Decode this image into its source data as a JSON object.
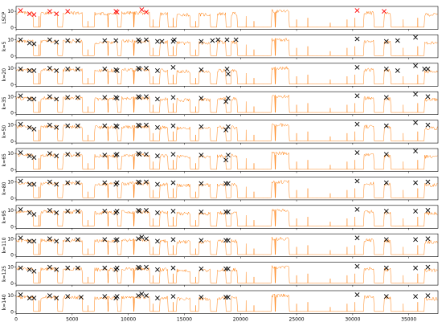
{
  "chart_data": {
    "type": "line",
    "title": "",
    "xlabel": "",
    "ylabel": "",
    "xlim": [
      0,
      37600
    ],
    "ylim": [
      -1,
      13
    ],
    "x_ticks": [
      0,
      5000,
      10000,
      15000,
      20000,
      25000,
      30000,
      35000
    ],
    "y_ticks": [
      0,
      10
    ],
    "grid": false,
    "legend": "none",
    "line_color": "#ff7f0e",
    "marker_color": "#000000",
    "highlight_marker_color": "#ff0000",
    "signal_segments": [
      {
        "start": 0,
        "end": 1500,
        "level": 9
      },
      {
        "start": 2200,
        "end": 3700,
        "level": 9
      },
      {
        "start": 4200,
        "end": 5900,
        "level": 9
      },
      {
        "start": 7000,
        "end": 9000,
        "level": 8.5
      },
      {
        "start": 9400,
        "end": 11900,
        "level": 9
      },
      {
        "start": 12800,
        "end": 13500,
        "level": 8.5
      },
      {
        "start": 14300,
        "end": 15500,
        "level": 8
      },
      {
        "start": 16300,
        "end": 17300,
        "level": 8
      },
      {
        "start": 17900,
        "end": 18700,
        "level": 8.5
      },
      {
        "start": 19200,
        "end": 19700,
        "level": 8.5
      },
      {
        "start": 22800,
        "end": 24300,
        "level": 10
      },
      {
        "start": 31000,
        "end": 31900,
        "level": 9
      },
      {
        "start": 32800,
        "end": 33400,
        "level": 8.5
      },
      {
        "start": 36400,
        "end": 37600,
        "level": 8
      }
    ],
    "spikes": [
      {
        "x": 2050,
        "level": 7
      },
      {
        "x": 6400,
        "level": 4
      },
      {
        "x": 8200,
        "level": 6
      },
      {
        "x": 10500,
        "level": 5
      },
      {
        "x": 12200,
        "level": 5
      },
      {
        "x": 14000,
        "level": 6
      },
      {
        "x": 16000,
        "level": 4
      },
      {
        "x": 20500,
        "level": 7
      },
      {
        "x": 21200,
        "level": 4
      },
      {
        "x": 23100,
        "level": 6
      },
      {
        "x": 25000,
        "level": 5
      },
      {
        "x": 26000,
        "level": 6
      },
      {
        "x": 28000,
        "level": 3
      },
      {
        "x": 29500,
        "level": 5
      },
      {
        "x": 30200,
        "level": 6
      },
      {
        "x": 34500,
        "level": 5
      },
      {
        "x": 35800,
        "level": 6
      }
    ],
    "series": [
      {
        "name": "LSCP",
        "marker_color": "#ff0000",
        "markers": [
          [
            400,
            10.5
          ],
          [
            1200,
            8.5
          ],
          [
            1600,
            8
          ],
          [
            3000,
            10
          ],
          [
            3600,
            8.5
          ],
          [
            4600,
            10
          ],
          [
            8900,
            10
          ],
          [
            9000,
            9.5
          ],
          [
            11200,
            11
          ],
          [
            11600,
            9.5
          ],
          [
            30400,
            10.5
          ],
          [
            32800,
            10
          ]
        ]
      },
      {
        "name": "k=5",
        "markers": [
          [
            400,
            10
          ],
          [
            1200,
            8
          ],
          [
            1600,
            7.5
          ],
          [
            3000,
            10
          ],
          [
            3600,
            8.5
          ],
          [
            4600,
            9.5
          ],
          [
            5500,
            9.5
          ],
          [
            7900,
            9.5
          ],
          [
            8900,
            9.5
          ],
          [
            10900,
            10
          ],
          [
            11000,
            9
          ],
          [
            11600,
            10
          ],
          [
            12600,
            9
          ],
          [
            13000,
            9
          ],
          [
            14000,
            9
          ],
          [
            14100,
            10
          ],
          [
            16500,
            9
          ],
          [
            17500,
            9.5
          ],
          [
            18000,
            10
          ],
          [
            18800,
            10
          ],
          [
            19600,
            10
          ],
          [
            30400,
            10.5
          ],
          [
            33000,
            9
          ],
          [
            34000,
            9.5
          ],
          [
            35600,
            11.5
          ]
        ]
      },
      {
        "name": "k=20",
        "markers": [
          [
            400,
            9.5
          ],
          [
            1200,
            8.5
          ],
          [
            1600,
            8.5
          ],
          [
            3000,
            10
          ],
          [
            3600,
            8.5
          ],
          [
            4600,
            9.5
          ],
          [
            5500,
            9.5
          ],
          [
            7900,
            9.5
          ],
          [
            8900,
            9
          ],
          [
            9000,
            8.5
          ],
          [
            10900,
            10
          ],
          [
            11000,
            9.5
          ],
          [
            11600,
            10
          ],
          [
            12600,
            8.5
          ],
          [
            14000,
            10.5
          ],
          [
            16500,
            9
          ],
          [
            18800,
            9.5
          ],
          [
            18900,
            6.5
          ],
          [
            30400,
            10.5
          ],
          [
            33000,
            9.5
          ],
          [
            34000,
            8.5
          ],
          [
            35600,
            11.5
          ],
          [
            36400,
            9.5
          ],
          [
            36700,
            9.5
          ]
        ]
      },
      {
        "name": "k=35",
        "markers": [
          [
            400,
            10.5
          ],
          [
            1200,
            8.5
          ],
          [
            1600,
            8.5
          ],
          [
            3000,
            10
          ],
          [
            3600,
            8.5
          ],
          [
            4600,
            9.5
          ],
          [
            5500,
            9.5
          ],
          [
            7900,
            9.5
          ],
          [
            8900,
            9.5
          ],
          [
            9000,
            9
          ],
          [
            10900,
            10
          ],
          [
            11000,
            9.5
          ],
          [
            11600,
            10
          ],
          [
            12600,
            8.5
          ],
          [
            14000,
            9.5
          ],
          [
            16500,
            9
          ],
          [
            18700,
            7
          ],
          [
            18900,
            9
          ],
          [
            30400,
            10.5
          ],
          [
            33000,
            9.5
          ],
          [
            35600,
            11.5
          ],
          [
            36700,
            10
          ]
        ]
      },
      {
        "name": "k=50",
        "markers": [
          [
            400,
            10.5
          ],
          [
            1200,
            8.5
          ],
          [
            1600,
            7.5
          ],
          [
            3000,
            10
          ],
          [
            3600,
            8.5
          ],
          [
            4600,
            9.5
          ],
          [
            5500,
            9.5
          ],
          [
            7900,
            9.5
          ],
          [
            8900,
            9.5
          ],
          [
            9000,
            9
          ],
          [
            10900,
            10
          ],
          [
            11000,
            9.5
          ],
          [
            11600,
            10
          ],
          [
            12600,
            8.5
          ],
          [
            14000,
            9.5
          ],
          [
            16500,
            9
          ],
          [
            18700,
            7
          ],
          [
            18900,
            9
          ],
          [
            30400,
            10.5
          ],
          [
            33000,
            9.5
          ],
          [
            35600,
            11.5
          ],
          [
            36700,
            10
          ]
        ]
      },
      {
        "name": "k=65",
        "markers": [
          [
            400,
            10.5
          ],
          [
            1200,
            8.5
          ],
          [
            1600,
            7.5
          ],
          [
            3000,
            10
          ],
          [
            3600,
            8.5
          ],
          [
            4600,
            9.5
          ],
          [
            5500,
            9.5
          ],
          [
            7900,
            9
          ],
          [
            8900,
            9
          ],
          [
            9000,
            9.5
          ],
          [
            10900,
            10
          ],
          [
            11000,
            9.5
          ],
          [
            11600,
            9.5
          ],
          [
            12600,
            8.5
          ],
          [
            14000,
            9.5
          ],
          [
            16500,
            9
          ],
          [
            18700,
            6
          ],
          [
            18900,
            9
          ],
          [
            30400,
            10.5
          ],
          [
            33000,
            9.5
          ],
          [
            35600,
            11.5
          ]
        ]
      },
      {
        "name": "k=80",
        "markers": [
          [
            400,
            10.5
          ],
          [
            1200,
            8.5
          ],
          [
            1600,
            8.5
          ],
          [
            3000,
            10
          ],
          [
            3600,
            8.5
          ],
          [
            4600,
            9.5
          ],
          [
            5500,
            9.5
          ],
          [
            7900,
            9.5
          ],
          [
            8900,
            8.5
          ],
          [
            9000,
            9.5
          ],
          [
            10900,
            10
          ],
          [
            11000,
            9.5
          ],
          [
            11600,
            10
          ],
          [
            12600,
            8.5
          ],
          [
            14000,
            9.5
          ],
          [
            16500,
            9
          ],
          [
            18700,
            9
          ],
          [
            18900,
            9
          ],
          [
            30400,
            10.5
          ],
          [
            33000,
            9.5
          ],
          [
            35600,
            9.5
          ],
          [
            36700,
            10
          ]
        ]
      },
      {
        "name": "k=95",
        "markers": [
          [
            400,
            10.5
          ],
          [
            1200,
            8.5
          ],
          [
            1600,
            7.5
          ],
          [
            3000,
            10
          ],
          [
            3600,
            8.5
          ],
          [
            4600,
            9.5
          ],
          [
            5500,
            9.5
          ],
          [
            7900,
            9.5
          ],
          [
            8900,
            8.5
          ],
          [
            9000,
            9.5
          ],
          [
            10900,
            10
          ],
          [
            11000,
            9.5
          ],
          [
            11600,
            10
          ],
          [
            12600,
            8.5
          ],
          [
            14000,
            9.5
          ],
          [
            16500,
            9
          ],
          [
            18700,
            9
          ],
          [
            18900,
            9
          ],
          [
            30400,
            10.5
          ],
          [
            33000,
            9.5
          ],
          [
            35600,
            9.5
          ],
          [
            36700,
            10
          ]
        ]
      },
      {
        "name": "k=110",
        "markers": [
          [
            400,
            10.5
          ],
          [
            1200,
            8.5
          ],
          [
            1600,
            8.5
          ],
          [
            3000,
            10
          ],
          [
            3600,
            8.5
          ],
          [
            4600,
            9.5
          ],
          [
            5500,
            9.5
          ],
          [
            7900,
            9.5
          ],
          [
            8900,
            9
          ],
          [
            9000,
            9.5
          ],
          [
            10900,
            10
          ],
          [
            11200,
            11
          ],
          [
            11600,
            10
          ],
          [
            12600,
            8.5
          ],
          [
            14000,
            9.5
          ],
          [
            16500,
            9
          ],
          [
            18700,
            9
          ],
          [
            18900,
            9
          ],
          [
            30400,
            10.5
          ],
          [
            33000,
            9.5
          ],
          [
            35600,
            9.5
          ],
          [
            36700,
            10
          ]
        ]
      },
      {
        "name": "k=125",
        "markers": [
          [
            400,
            9.5
          ],
          [
            1200,
            8.5
          ],
          [
            1600,
            7.5
          ],
          [
            3000,
            10
          ],
          [
            3600,
            8.5
          ],
          [
            4600,
            9.5
          ],
          [
            5500,
            9.5
          ],
          [
            7900,
            9.5
          ],
          [
            8900,
            8.5
          ],
          [
            9000,
            9.5
          ],
          [
            10900,
            10
          ],
          [
            11000,
            9.5
          ],
          [
            11600,
            10
          ],
          [
            12600,
            8.5
          ],
          [
            14000,
            9.5
          ],
          [
            16500,
            9
          ],
          [
            18700,
            9
          ],
          [
            18900,
            9
          ],
          [
            30400,
            10.5
          ],
          [
            33000,
            9.5
          ],
          [
            35600,
            9.5
          ],
          [
            36700,
            10
          ]
        ]
      },
      {
        "name": "k=140",
        "markers": [
          [
            400,
            10.5
          ],
          [
            1200,
            8.5
          ],
          [
            1600,
            8.5
          ],
          [
            3000,
            10
          ],
          [
            3600,
            8.5
          ],
          [
            4600,
            9.5
          ],
          [
            5800,
            9
          ],
          [
            7900,
            9.5
          ],
          [
            8900,
            8.5
          ],
          [
            9000,
            9.5
          ],
          [
            10900,
            10
          ],
          [
            11200,
            11
          ],
          [
            11600,
            10
          ],
          [
            12600,
            8.5
          ],
          [
            14000,
            9.5
          ],
          [
            16500,
            9
          ],
          [
            18700,
            9
          ],
          [
            18900,
            9
          ],
          [
            30400,
            10.5
          ],
          [
            33000,
            9.5
          ],
          [
            35600,
            9.5
          ],
          [
            36700,
            10
          ]
        ]
      }
    ]
  }
}
